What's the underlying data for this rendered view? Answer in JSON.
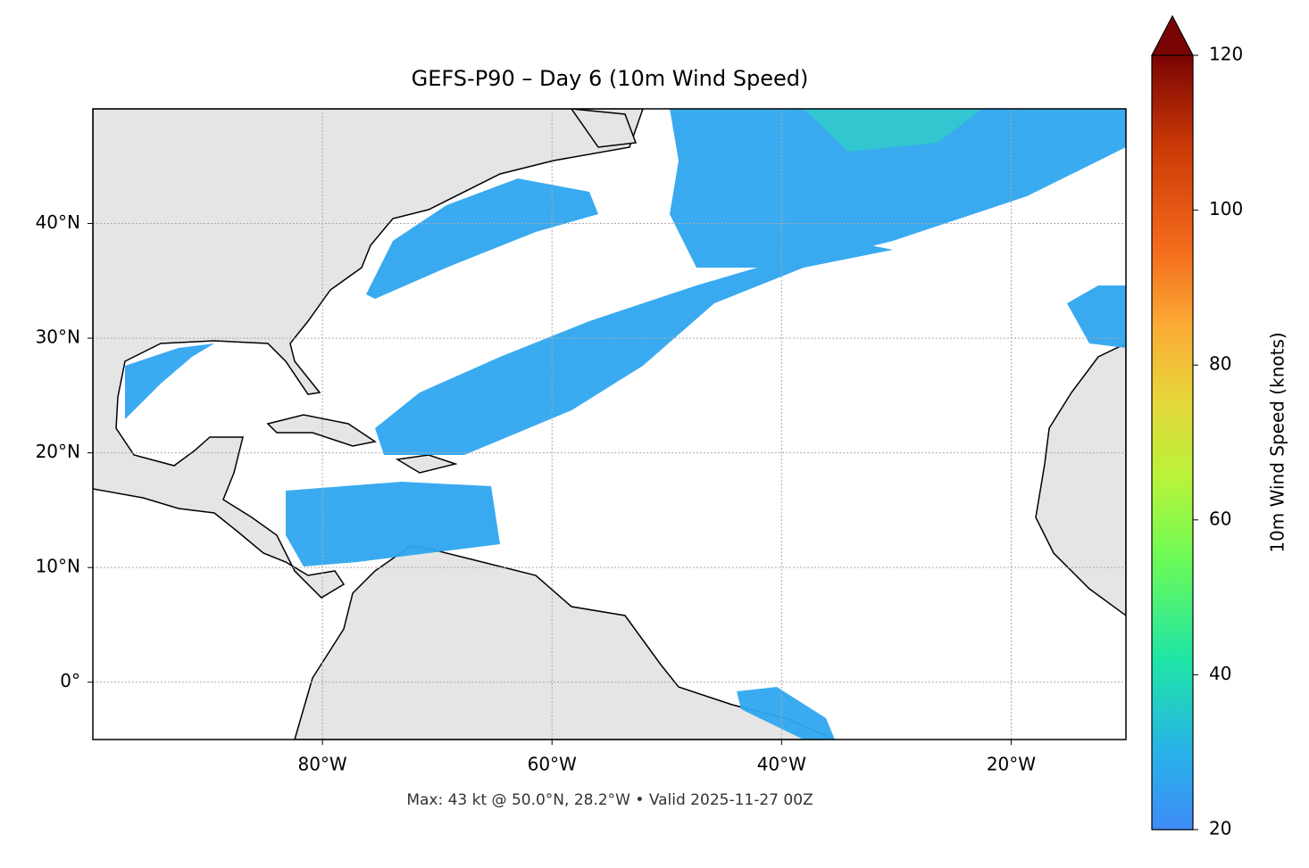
{
  "chart_data": {
    "type": "map",
    "title": "GEFS-P90 – Day 6 (10m Wind Speed)",
    "footnote": "Max: 43 kt @ 50.0°N, 28.2°W • Valid 2025-11-27 00Z",
    "xlim": [
      -100,
      -10
    ],
    "ylim": [
      -5,
      50
    ],
    "xticks": [
      {
        "value": -80,
        "label": "80°W"
      },
      {
        "value": -60,
        "label": "60°W"
      },
      {
        "value": -40,
        "label": "40°W"
      },
      {
        "value": -20,
        "label": "20°W"
      }
    ],
    "yticks": [
      {
        "value": 0,
        "label": "0°"
      },
      {
        "value": 10,
        "label": "10°N"
      },
      {
        "value": 20,
        "label": "20°N"
      },
      {
        "value": 30,
        "label": "30°N"
      },
      {
        "value": 40,
        "label": "40°N"
      }
    ],
    "grid": true,
    "colorbar": {
      "label": "10m Wind Speed (knots)",
      "lim": [
        20,
        120
      ],
      "ticks": [
        20,
        40,
        60,
        80,
        100,
        120
      ],
      "extend": "max"
    }
  }
}
